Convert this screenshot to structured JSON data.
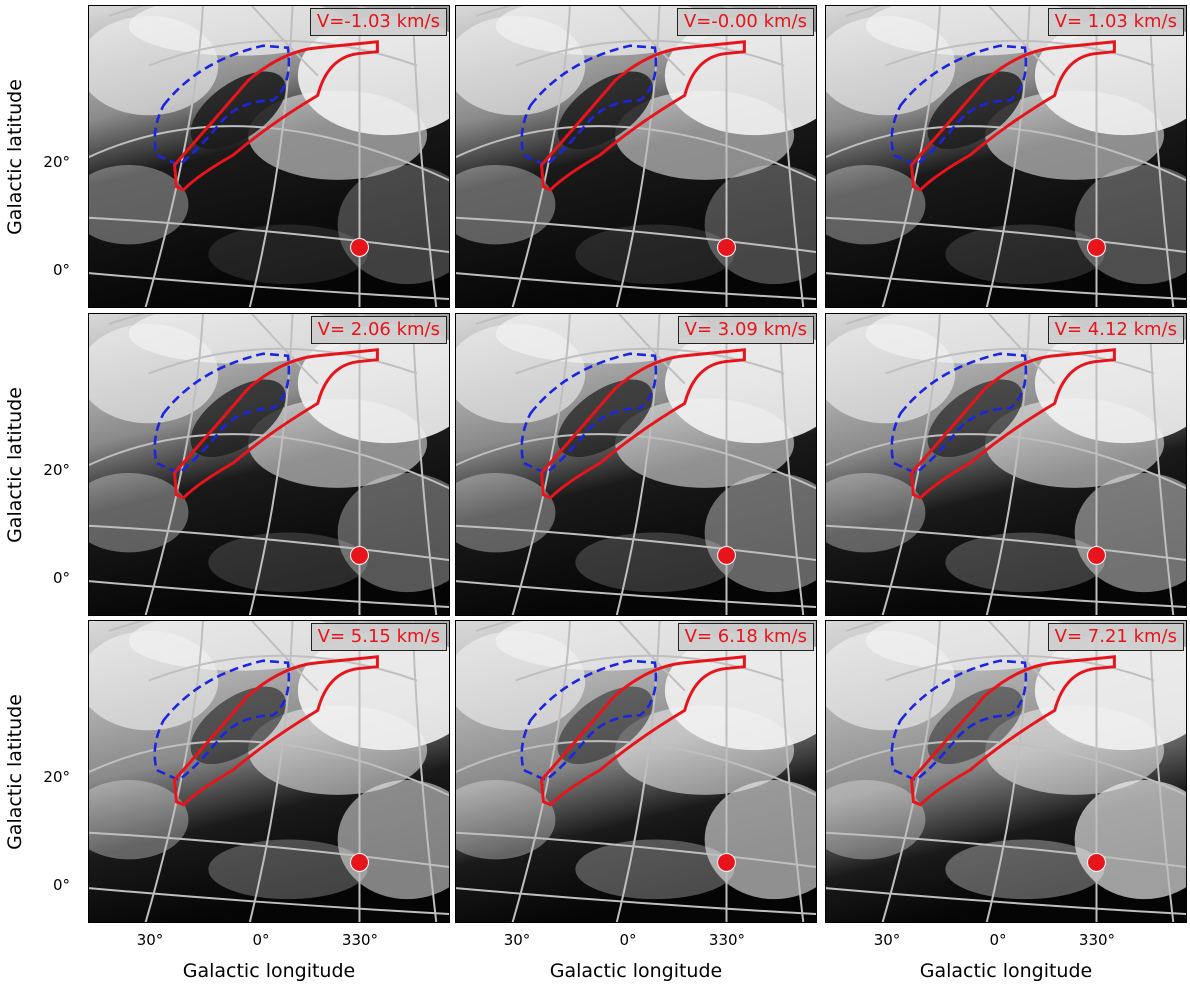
{
  "axes": {
    "ylabel": "Galactic latitude",
    "xlabel": "Galactic longitude",
    "yticks": [
      "20°",
      "0°"
    ],
    "xticks": [
      "30°",
      "0°",
      "330°"
    ]
  },
  "panels": [
    {
      "velocity": "V=-1.03 km/s",
      "sky": 0.0
    },
    {
      "velocity": "V=-0.00 km/s",
      "sky": 0.05
    },
    {
      "velocity": "V= 1.03 km/s",
      "sky": 0.12
    },
    {
      "velocity": "V= 2.06 km/s",
      "sky": 0.2
    },
    {
      "velocity": "V= 3.09 km/s",
      "sky": 0.3
    },
    {
      "velocity": "V= 4.12 km/s",
      "sky": 0.42
    },
    {
      "velocity": "V= 5.15 km/s",
      "sky": 0.55
    },
    {
      "velocity": "V= 6.18 km/s",
      "sky": 0.68
    },
    {
      "velocity": "V= 7.21 km/s",
      "sky": 0.8
    }
  ],
  "colors": {
    "red_contour": "#e8141c",
    "blue_contour": "#1b25e0",
    "grid": "#bfbfbf",
    "marker": "#e8141c"
  }
}
